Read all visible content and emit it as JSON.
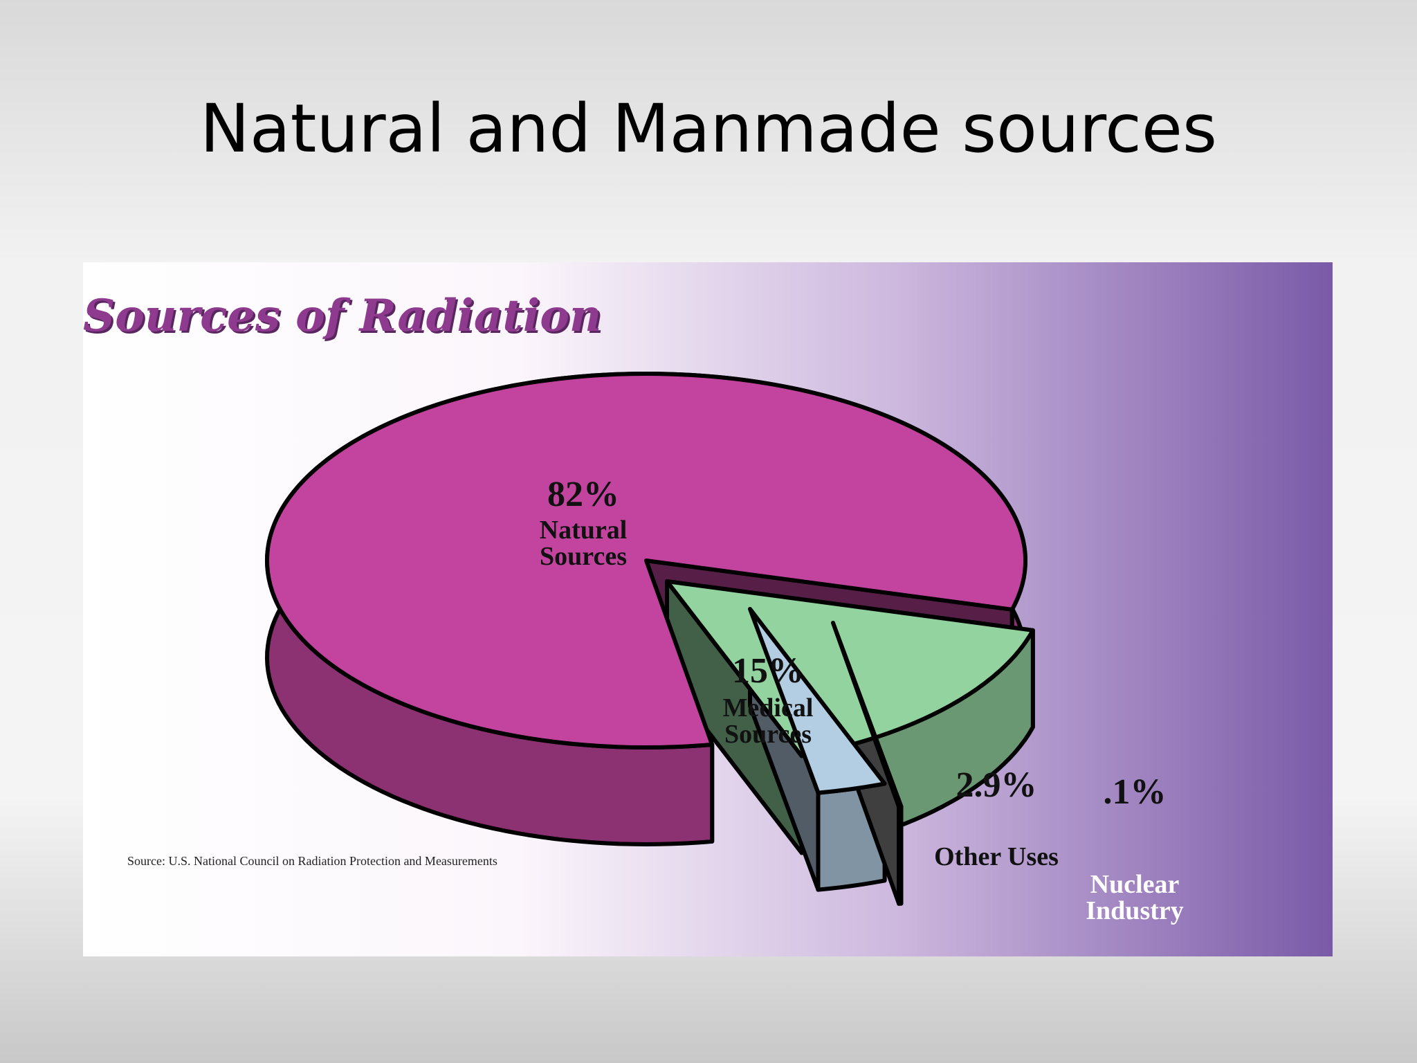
{
  "slide_title": "Natural and Manmade sources",
  "chart_data": {
    "type": "pie",
    "title": "Sources of Radiation",
    "categories": [
      "Natural Sources",
      "Medical Sources",
      "Other Uses",
      "Nuclear Industry"
    ],
    "values": [
      82,
      15,
      2.9,
      0.1
    ],
    "value_labels": [
      "82%",
      "15%",
      "2.9%",
      ".1%"
    ],
    "colors": [
      "#c2449e",
      "#93d3a0",
      "#b3cde3",
      "#8c8c8c"
    ],
    "source": "Source: U.S. National Council on Radiation Protection and Measurements"
  }
}
